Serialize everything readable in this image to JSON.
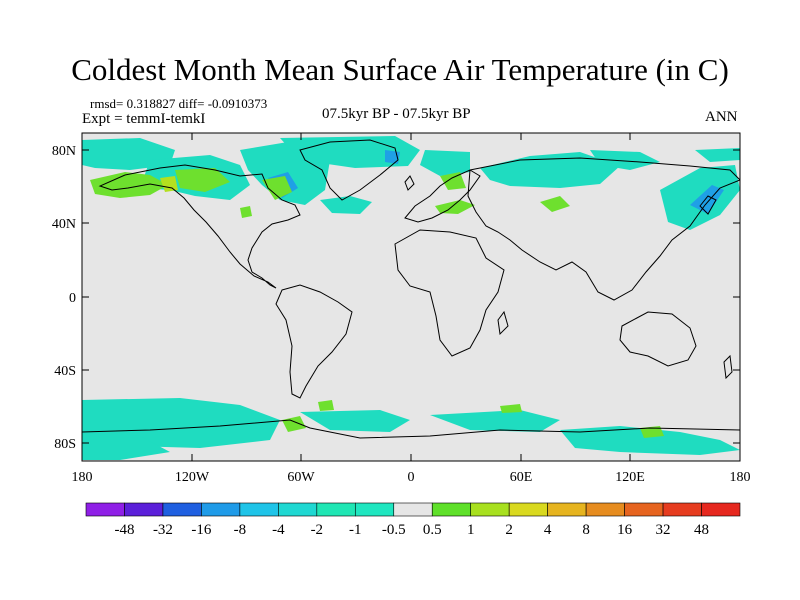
{
  "title": "Coldest Month Mean Surface Air Temperature (in C)",
  "stats": "rmsd= 0.318827 diff= -0.0910373",
  "expt": "Expt = temmI-temkI",
  "period": "07.5kyr BP - 07.5kyr BP",
  "season": "ANN",
  "lat_labels": [
    "80N",
    "40N",
    "0",
    "40S",
    "80S"
  ],
  "lon_labels": [
    "180",
    "120W",
    "60W",
    "0",
    "60E",
    "120E",
    "180"
  ],
  "colorbar": {
    "colors": [
      "#8f1fe6",
      "#5b1fd9",
      "#1f5fe0",
      "#1f9be8",
      "#1fc4e8",
      "#1fd8d2",
      "#1fe6b4",
      "#1fe6c0",
      "#e6e6e6",
      "#5fe02a",
      "#a8e01f",
      "#d9d91f",
      "#e6b41f",
      "#e68c1f",
      "#e6641f",
      "#e63c1f",
      "#e6281f"
    ],
    "labels": [
      "-48",
      "-32",
      "-16",
      "-8",
      "-4",
      "-2",
      "-1",
      "-0.5",
      "0.5",
      "1",
      "2",
      "4",
      "8",
      "16",
      "32",
      "48"
    ]
  },
  "map": {
    "background": "#e6e6e6",
    "cool_color": "#1fdcc0",
    "cold_color": "#1fa0e6",
    "warm_color": "#6ee02e",
    "yellow_color": "#b4e01f"
  }
}
